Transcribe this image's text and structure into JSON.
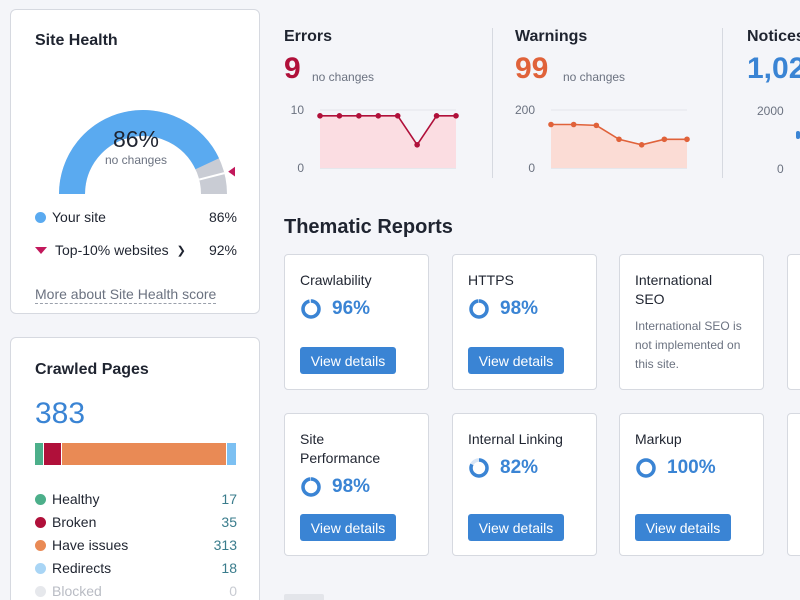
{
  "site_health": {
    "title": "Site Health",
    "score": "86%",
    "score_sub": "no changes",
    "score_fraction": 0.86,
    "top10_fraction": 0.92,
    "legend": [
      {
        "label": "Your site",
        "value": "86%"
      },
      {
        "label": "Top-10% websites",
        "value": "92%"
      }
    ],
    "more_link": "More about Site Health score",
    "colors": {
      "your_site": "#5aaaf0",
      "top10_marker": "#c2185b",
      "remaining": "#c9ccd4"
    }
  },
  "crawled_pages": {
    "title": "Crawled Pages",
    "total": "383",
    "categories": [
      {
        "label": "Healthy",
        "value": "17",
        "count": 17,
        "color": "#4caf8a"
      },
      {
        "label": "Broken",
        "value": "35",
        "count": 35,
        "color": "#b0103a"
      },
      {
        "label": "Have issues",
        "value": "313",
        "count": 313,
        "color": "#e98a55"
      },
      {
        "label": "Redirects",
        "value": "18",
        "count": 18,
        "color": "#7cc0f2"
      },
      {
        "label": "Blocked",
        "value": "0",
        "count": 0,
        "color": "#d9dce2"
      }
    ]
  },
  "metrics": {
    "errors": {
      "title": "Errors",
      "value": "9",
      "sub": "no changes",
      "color": "#b0103a",
      "fill": "#fbdde2",
      "y_top": "10",
      "y_bottom": "0",
      "ymax": 10,
      "series": [
        9,
        9,
        9,
        9,
        9,
        4,
        9,
        9
      ]
    },
    "warnings": {
      "title": "Warnings",
      "value": "99",
      "sub": "no changes",
      "color": "#e0623a",
      "fill": "#fbdcd5",
      "y_top": "200",
      "y_bottom": "0",
      "ymax": 200,
      "series": [
        150,
        150,
        147,
        99,
        80,
        99,
        99
      ]
    },
    "notices": {
      "title": "Notices",
      "value": "1,02",
      "color": "#3a84d4",
      "y_top": "2000",
      "y_bottom": "0"
    }
  },
  "thematic": {
    "title": "Thematic Reports",
    "button_label": "View details",
    "reports": [
      {
        "name": "Crawlability",
        "score": "96%",
        "fraction": 0.96
      },
      {
        "name": "HTTPS",
        "score": "98%",
        "fraction": 0.98
      },
      {
        "name": "International SEO",
        "note": "International SEO is not implemented on this site."
      },
      {
        "name": "Site Performance",
        "score": "98%",
        "fraction": 0.98
      },
      {
        "name": "Internal Linking",
        "score": "82%",
        "fraction": 0.82
      },
      {
        "name": "Markup",
        "score": "100%",
        "fraction": 1.0
      }
    ]
  }
}
